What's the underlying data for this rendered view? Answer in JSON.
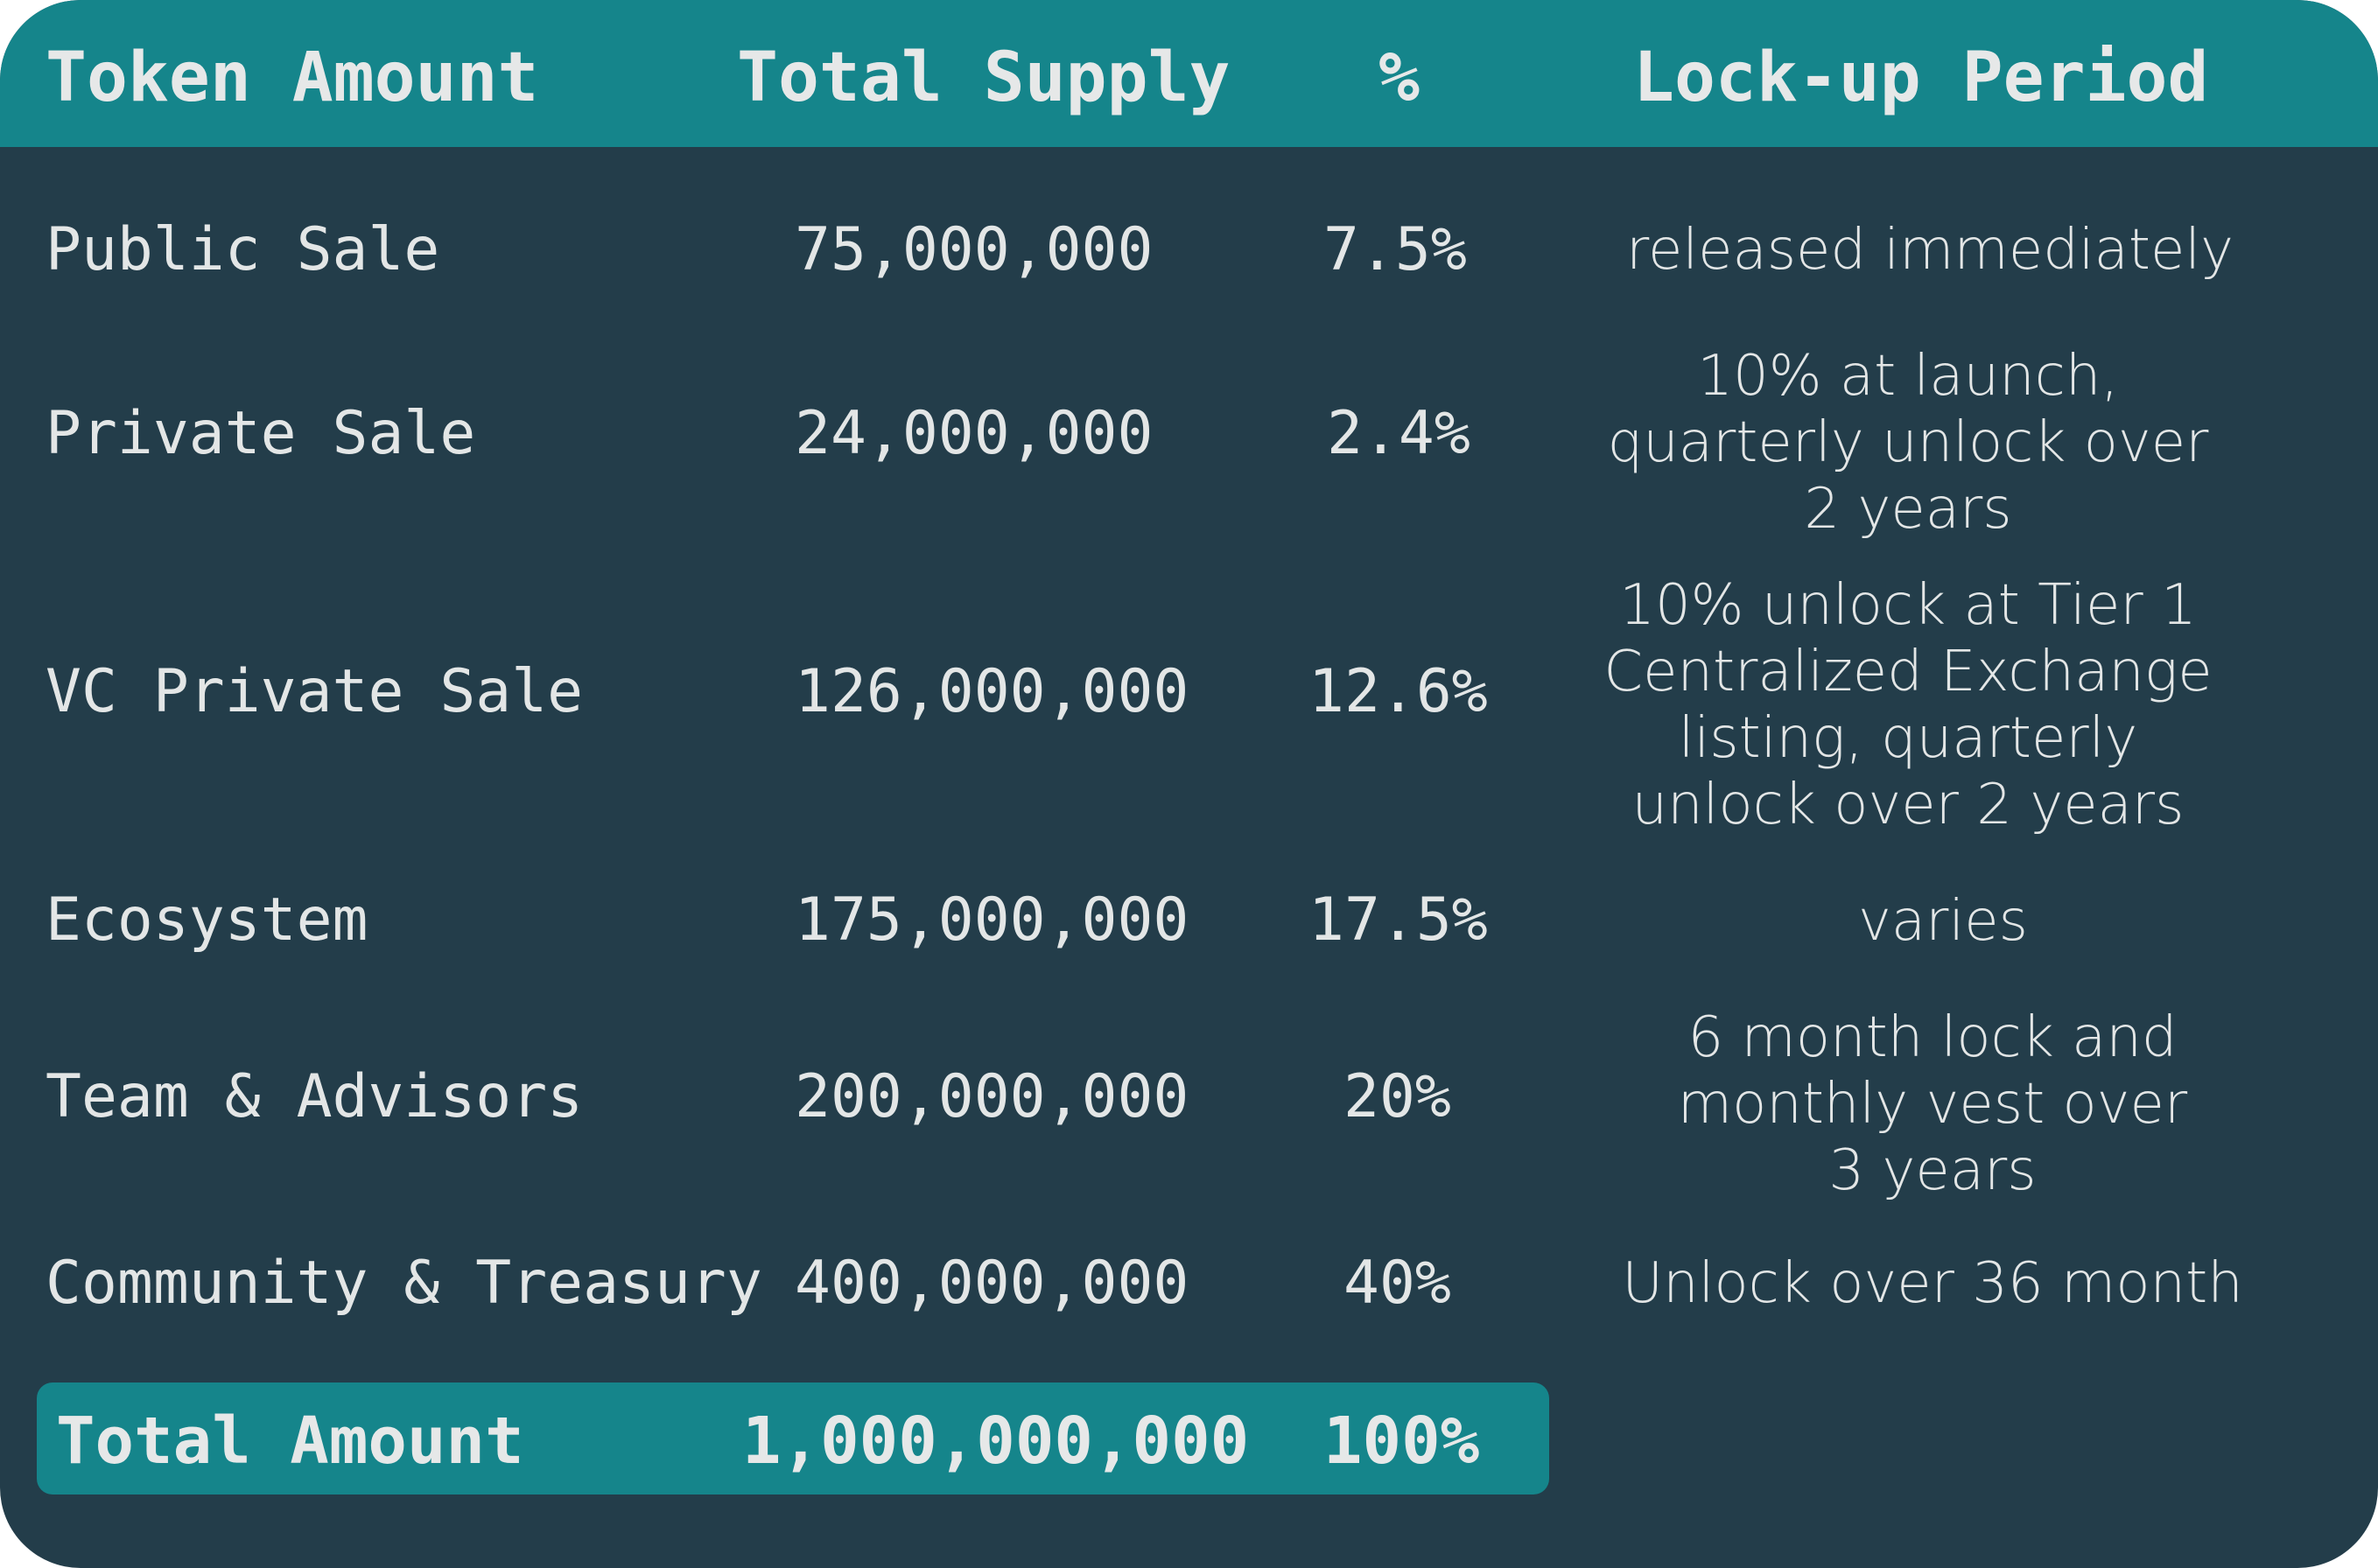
{
  "chart_data": {
    "type": "table",
    "columns": [
      "Token Amount",
      "Total Supply",
      "%",
      "Lock-up Period"
    ],
    "rows": [
      {
        "name": "Public Sale",
        "supply": "75,000,000",
        "pct": "7.5%",
        "lockup": "released immediately"
      },
      {
        "name": "Private Sale",
        "supply": "24,000,000",
        "pct": "2.4%",
        "lockup": "10% at launch,\nquarterly unlock over\n2 years"
      },
      {
        "name": "VC Private Sale",
        "supply": "126,000,000",
        "pct": "12.6%",
        "lockup": "10% unlock at Tier 1\nCentralized Exchange\nlisting, quarterly\nunlock over 2 years"
      },
      {
        "name": "Ecosystem",
        "supply": "175,000,000",
        "pct": "17.5%",
        "lockup": "varies"
      },
      {
        "name": "Team & Advisors",
        "supply": "200,000,000",
        "pct": "20%",
        "lockup": "6 month lock and\nmonthly vest over\n3 years"
      },
      {
        "name": "Community & Treasury",
        "supply": "400,000,000",
        "pct": "40%",
        "lockup": "Unlock over 36 month"
      }
    ],
    "total": {
      "label": "Total Amount",
      "supply": "1,000,000,000",
      "pct": "100%"
    }
  },
  "colors": {
    "background": "#233d4a",
    "header": "#15858b",
    "text": "#e3e6e6"
  }
}
